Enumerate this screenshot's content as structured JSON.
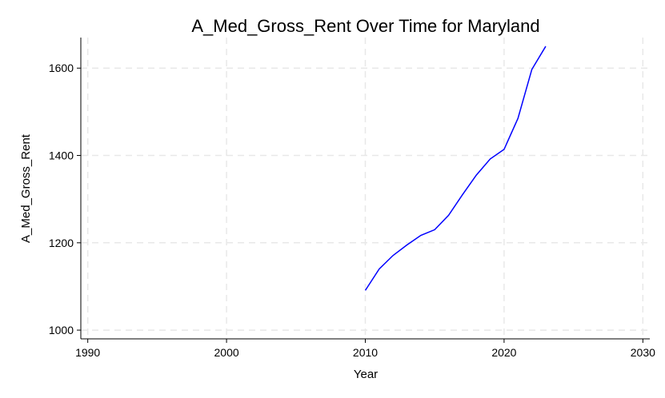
{
  "chart_data": {
    "type": "line",
    "title": "A_Med_Gross_Rent Over Time for Maryland",
    "xlabel": "Year",
    "ylabel": "A_Med_Gross_Rent",
    "xlim": [
      1989.5,
      2030.5
    ],
    "ylim": [
      980,
      1670
    ],
    "xticks": [
      1990,
      2000,
      2010,
      2020,
      2030
    ],
    "yticks": [
      1000,
      1200,
      1400,
      1600
    ],
    "grid": true,
    "colors": {
      "series": "#0000ff",
      "grid": "#e8e8e8",
      "axis": "#000000"
    },
    "series": [
      {
        "x": [
          2010,
          2011,
          2012,
          2013,
          2014,
          2015,
          2016,
          2017,
          2018,
          2019,
          2020,
          2021,
          2022,
          2023
        ],
        "values": [
          1091,
          1140,
          1171,
          1195,
          1217,
          1230,
          1263,
          1310,
          1355,
          1392,
          1414,
          1485,
          1597,
          1650
        ]
      }
    ]
  }
}
